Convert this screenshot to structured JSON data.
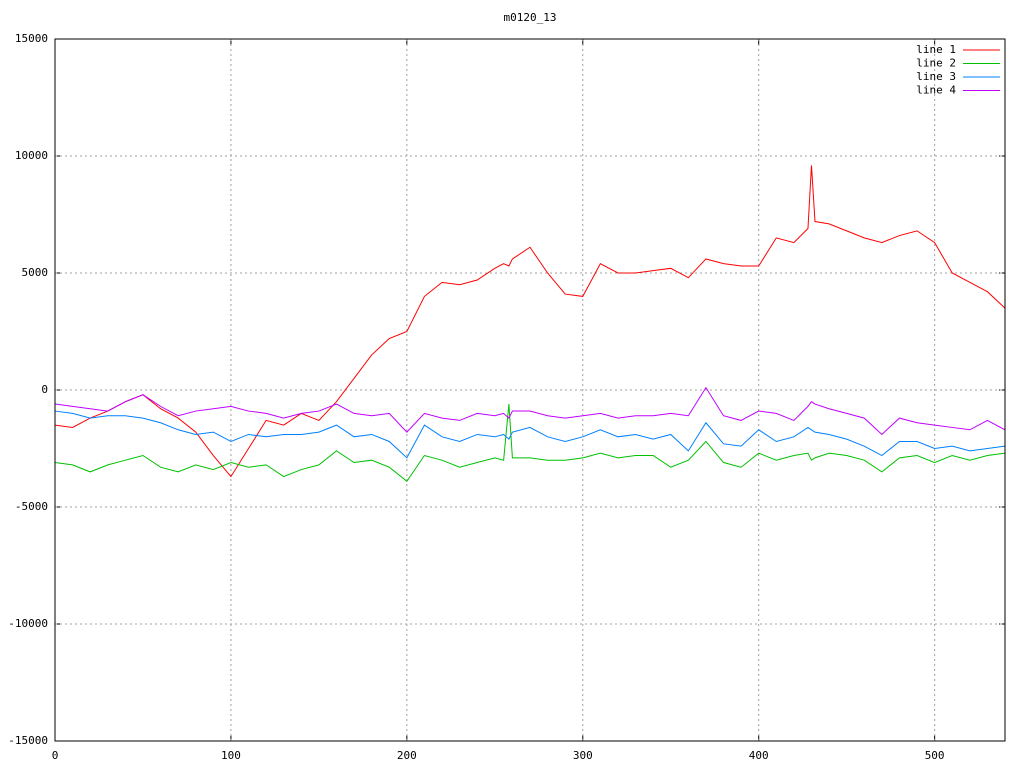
{
  "chart_data": {
    "type": "line",
    "title": "m0120_13",
    "x": [
      0,
      10,
      20,
      30,
      40,
      50,
      60,
      70,
      80,
      90,
      100,
      110,
      120,
      130,
      140,
      150,
      160,
      170,
      180,
      190,
      200,
      210,
      220,
      230,
      240,
      250,
      255,
      258,
      260,
      270,
      280,
      290,
      300,
      310,
      320,
      330,
      340,
      350,
      360,
      370,
      380,
      390,
      400,
      410,
      420,
      428,
      430,
      432,
      440,
      450,
      460,
      470,
      480,
      490,
      500,
      510,
      520,
      530,
      540
    ],
    "series": [
      {
        "name": "line 1",
        "color": "#ff0000",
        "values": [
          -1500,
          -1600,
          -1200,
          -900,
          -500,
          -200,
          -800,
          -1200,
          -1800,
          -2800,
          -3700,
          -2500,
          -1300,
          -1500,
          -1000,
          -1300,
          -500,
          500,
          1500,
          2200,
          2500,
          4000,
          4600,
          4500,
          4700,
          5200,
          5400,
          5300,
          5600,
          6100,
          5000,
          4100,
          4000,
          5400,
          5000,
          5000,
          5100,
          5200,
          4800,
          5600,
          5400,
          5300,
          5300,
          6500,
          6300,
          6900,
          9600,
          7200,
          7100,
          6800,
          6500,
          6300,
          6600,
          6800,
          6300,
          5000,
          4600,
          4200,
          3500
        ]
      },
      {
        "name": "line 2",
        "color": "#00c000",
        "values": [
          -3100,
          -3200,
          -3500,
          -3200,
          -3000,
          -2800,
          -3300,
          -3500,
          -3200,
          -3400,
          -3100,
          -3300,
          -3200,
          -3700,
          -3400,
          -3200,
          -2600,
          -3100,
          -3000,
          -3300,
          -3900,
          -2800,
          -3000,
          -3300,
          -3100,
          -2900,
          -3000,
          -600,
          -2900,
          -2900,
          -3000,
          -3000,
          -2900,
          -2700,
          -2900,
          -2800,
          -2800,
          -3300,
          -3000,
          -2200,
          -3100,
          -3300,
          -2700,
          -3000,
          -2800,
          -2700,
          -3000,
          -2900,
          -2700,
          -2800,
          -3000,
          -3500,
          -2900,
          -2800,
          -3100,
          -2800,
          -3000,
          -2800,
          -2700
        ]
      },
      {
        "name": "line 3",
        "color": "#0080ff",
        "values": [
          -900,
          -1000,
          -1200,
          -1100,
          -1100,
          -1200,
          -1400,
          -1700,
          -1900,
          -1800,
          -2200,
          -1900,
          -2000,
          -1900,
          -1900,
          -1800,
          -1500,
          -2000,
          -1900,
          -2200,
          -2900,
          -1500,
          -2000,
          -2200,
          -1900,
          -2000,
          -1900,
          -2100,
          -1800,
          -1600,
          -2000,
          -2200,
          -2000,
          -1700,
          -2000,
          -1900,
          -2100,
          -1900,
          -2600,
          -1400,
          -2300,
          -2400,
          -1700,
          -2200,
          -2000,
          -1600,
          -1700,
          -1800,
          -1900,
          -2100,
          -2400,
          -2800,
          -2200,
          -2200,
          -2500,
          -2400,
          -2600,
          -2500,
          -2400
        ]
      },
      {
        "name": "line 4",
        "color": "#c000ff",
        "values": [
          -600,
          -700,
          -800,
          -900,
          -500,
          -200,
          -700,
          -1100,
          -900,
          -800,
          -700,
          -900,
          -1000,
          -1200,
          -1000,
          -900,
          -600,
          -1000,
          -1100,
          -1000,
          -1800,
          -1000,
          -1200,
          -1300,
          -1000,
          -1100,
          -1000,
          -1200,
          -900,
          -900,
          -1100,
          -1200,
          -1100,
          -1000,
          -1200,
          -1100,
          -1100,
          -1000,
          -1100,
          100,
          -1100,
          -1300,
          -900,
          -1000,
          -1300,
          -700,
          -500,
          -600,
          -800,
          -1000,
          -1200,
          -1900,
          -1200,
          -1400,
          -1500,
          -1600,
          -1700,
          -1300,
          -1700
        ]
      }
    ],
    "xlim": [
      0,
      540
    ],
    "ylim": [
      -15000,
      15000
    ],
    "xticks": [
      0,
      100,
      200,
      300,
      400,
      500
    ],
    "yticks": [
      -15000,
      -10000,
      -5000,
      0,
      5000,
      10000,
      15000
    ],
    "grid": true,
    "legend": "top-right"
  }
}
